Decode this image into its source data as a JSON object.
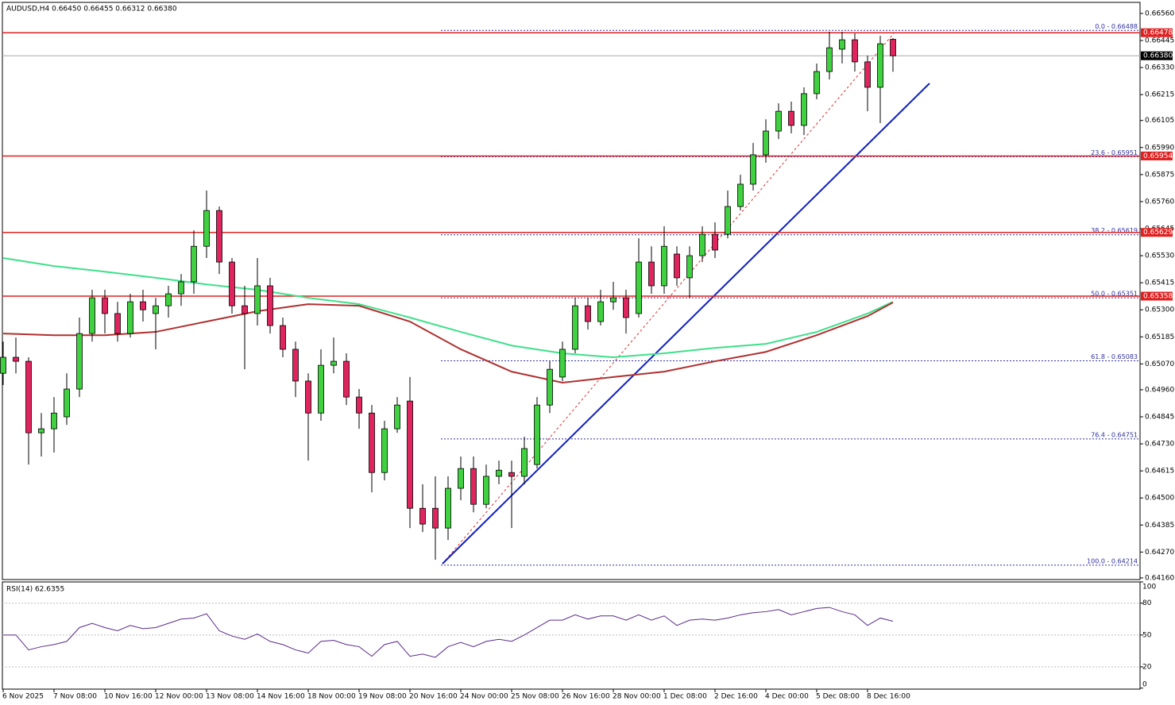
{
  "chart_data": {
    "type": "candlestick",
    "title": "AUDUSD,H4 0.66450 0.66455 0.66312 0.66380",
    "xlim": [
      0,
      89.5
    ],
    "ylim": [
      0.64153,
      0.66607
    ],
    "xticks": [
      {
        "value": 0,
        "label": "6 Nov 2025"
      },
      {
        "value": 4,
        "label": "7 Nov 08:00"
      },
      {
        "value": 8,
        "label": "10 Nov 16:00"
      },
      {
        "value": 12,
        "label": "12 Nov 00:00"
      },
      {
        "value": 16,
        "label": "13 Nov 08:00"
      },
      {
        "value": 20,
        "label": "14 Nov 16:00"
      },
      {
        "value": 24,
        "label": "18 Nov 00:00"
      },
      {
        "value": 28,
        "label": "19 Nov 08:00"
      },
      {
        "value": 32,
        "label": "20 Nov 16:00"
      },
      {
        "value": 36,
        "label": "24 Nov 00:00"
      },
      {
        "value": 40,
        "label": "25 Nov 08:00"
      },
      {
        "value": 44,
        "label": "26 Nov 16:00"
      },
      {
        "value": 48,
        "label": "28 Nov 00:00"
      },
      {
        "value": 52,
        "label": "1 Dec 08:00"
      },
      {
        "value": 56,
        "label": "2 Dec 16:00"
      },
      {
        "value": 60,
        "label": "4 Dec 00:00"
      },
      {
        "value": 64,
        "label": "5 Dec 08:00"
      },
      {
        "value": 68,
        "label": "8 Dec 16:00"
      }
    ],
    "yticks": [
      {
        "value": 0.6656,
        "label": "0.66560"
      },
      0.66445,
      {
        "value": 0.6633,
        "label": "0.66330"
      },
      0.66215,
      0.66105,
      {
        "value": 0.6599,
        "label": "0.65990"
      },
      0.65875,
      {
        "value": 0.6576,
        "label": "0.65760"
      },
      0.65645,
      {
        "value": 0.6553,
        "label": "0.65530"
      },
      0.65415,
      {
        "value": 0.653,
        "label": "0.65300"
      },
      0.65185,
      {
        "value": 0.6507,
        "label": "0.65070"
      },
      {
        "value": 0.6496,
        "label": "0.64960"
      },
      0.64845,
      {
        "value": 0.6473,
        "label": "0.64730"
      },
      0.64615,
      {
        "value": 0.645,
        "label": "0.64500"
      },
      0.64385,
      {
        "value": 0.6427,
        "label": "0.64270"
      },
      {
        "value": 0.6416,
        "label": "0.64160"
      }
    ],
    "up_color": "#3fd13f",
    "down_color": "#e0245e",
    "candles": [
      {
        "o": 0.6503,
        "h": 0.65165,
        "l": 0.6498,
        "c": 0.65098
      },
      {
        "o": 0.65098,
        "h": 0.65182,
        "l": 0.6503,
        "c": 0.65081
      },
      {
        "o": 0.65081,
        "h": 0.65098,
        "l": 0.64642,
        "c": 0.64777
      },
      {
        "o": 0.64777,
        "h": 0.64861,
        "l": 0.64676,
        "c": 0.64794
      },
      {
        "o": 0.64794,
        "h": 0.64929,
        "l": 0.64693,
        "c": 0.64861
      },
      {
        "o": 0.64845,
        "h": 0.6503,
        "l": 0.64811,
        "c": 0.64963
      },
      {
        "o": 0.64963,
        "h": 0.65267,
        "l": 0.64929,
        "c": 0.65199
      },
      {
        "o": 0.65199,
        "h": 0.65385,
        "l": 0.65165,
        "c": 0.65351
      },
      {
        "o": 0.65351,
        "h": 0.65385,
        "l": 0.65199,
        "c": 0.65284
      },
      {
        "o": 0.65284,
        "h": 0.65334,
        "l": 0.65165,
        "c": 0.65199
      },
      {
        "o": 0.65199,
        "h": 0.65368,
        "l": 0.65182,
        "c": 0.65334
      },
      {
        "o": 0.65334,
        "h": 0.65385,
        "l": 0.6525,
        "c": 0.653
      },
      {
        "o": 0.65284,
        "h": 0.65351,
        "l": 0.65132,
        "c": 0.65317
      },
      {
        "o": 0.65317,
        "h": 0.65402,
        "l": 0.65267,
        "c": 0.65368
      },
      {
        "o": 0.65368,
        "h": 0.65452,
        "l": 0.65317,
        "c": 0.65419
      },
      {
        "o": 0.65419,
        "h": 0.65638,
        "l": 0.65368,
        "c": 0.6557
      },
      {
        "o": 0.6557,
        "h": 0.65807,
        "l": 0.6552,
        "c": 0.65722
      },
      {
        "o": 0.65722,
        "h": 0.65739,
        "l": 0.65452,
        "c": 0.65503
      },
      {
        "o": 0.65503,
        "h": 0.6552,
        "l": 0.65284,
        "c": 0.65317
      },
      {
        "o": 0.65317,
        "h": 0.65402,
        "l": 0.65047,
        "c": 0.65284
      },
      {
        "o": 0.65284,
        "h": 0.6552,
        "l": 0.65233,
        "c": 0.65402
      },
      {
        "o": 0.65402,
        "h": 0.65436,
        "l": 0.65199,
        "c": 0.65233
      },
      {
        "o": 0.65233,
        "h": 0.65267,
        "l": 0.65098,
        "c": 0.65132
      },
      {
        "o": 0.65132,
        "h": 0.65165,
        "l": 0.64929,
        "c": 0.64997
      },
      {
        "o": 0.64997,
        "h": 0.6503,
        "l": 0.64659,
        "c": 0.64861
      },
      {
        "o": 0.64861,
        "h": 0.65132,
        "l": 0.64828,
        "c": 0.65064
      },
      {
        "o": 0.65064,
        "h": 0.65182,
        "l": 0.6503,
        "c": 0.65081
      },
      {
        "o": 0.65081,
        "h": 0.65115,
        "l": 0.64895,
        "c": 0.64929
      },
      {
        "o": 0.64929,
        "h": 0.64963,
        "l": 0.64794,
        "c": 0.64861
      },
      {
        "o": 0.64861,
        "h": 0.64895,
        "l": 0.64524,
        "c": 0.64608
      },
      {
        "o": 0.64608,
        "h": 0.64828,
        "l": 0.64575,
        "c": 0.64794
      },
      {
        "o": 0.64794,
        "h": 0.64929,
        "l": 0.64777,
        "c": 0.64895
      },
      {
        "o": 0.64912,
        "h": 0.65014,
        "l": 0.64372,
        "c": 0.64456
      },
      {
        "o": 0.64456,
        "h": 0.64558,
        "l": 0.64355,
        "c": 0.64389
      },
      {
        "o": 0.64456,
        "h": 0.64592,
        "l": 0.64237,
        "c": 0.64372
      },
      {
        "o": 0.64372,
        "h": 0.64592,
        "l": 0.64321,
        "c": 0.64541
      },
      {
        "o": 0.64541,
        "h": 0.64676,
        "l": 0.6449,
        "c": 0.64625
      },
      {
        "o": 0.64625,
        "h": 0.64676,
        "l": 0.64439,
        "c": 0.64473
      },
      {
        "o": 0.64473,
        "h": 0.64642,
        "l": 0.64456,
        "c": 0.64592
      },
      {
        "o": 0.64592,
        "h": 0.64659,
        "l": 0.64558,
        "c": 0.64618
      },
      {
        "o": 0.64608,
        "h": 0.64659,
        "l": 0.64372,
        "c": 0.64592
      },
      {
        "o": 0.64592,
        "h": 0.6476,
        "l": 0.64558,
        "c": 0.6471
      },
      {
        "o": 0.64642,
        "h": 0.64929,
        "l": 0.64625,
        "c": 0.64895
      },
      {
        "o": 0.64895,
        "h": 0.65081,
        "l": 0.64861,
        "c": 0.65047
      },
      {
        "o": 0.65014,
        "h": 0.65165,
        "l": 0.64997,
        "c": 0.65132
      },
      {
        "o": 0.65132,
        "h": 0.65351,
        "l": 0.65115,
        "c": 0.65317
      },
      {
        "o": 0.65317,
        "h": 0.65351,
        "l": 0.65216,
        "c": 0.6525
      },
      {
        "o": 0.6525,
        "h": 0.65385,
        "l": 0.65233,
        "c": 0.65334
      },
      {
        "o": 0.65334,
        "h": 0.65419,
        "l": 0.653,
        "c": 0.65351
      },
      {
        "o": 0.65351,
        "h": 0.65385,
        "l": 0.65199,
        "c": 0.65267
      },
      {
        "o": 0.65284,
        "h": 0.65604,
        "l": 0.65267,
        "c": 0.65503
      },
      {
        "o": 0.65503,
        "h": 0.6557,
        "l": 0.65368,
        "c": 0.65402
      },
      {
        "o": 0.65402,
        "h": 0.65655,
        "l": 0.65368,
        "c": 0.6557
      },
      {
        "o": 0.65537,
        "h": 0.6557,
        "l": 0.65402,
        "c": 0.65436
      },
      {
        "o": 0.65436,
        "h": 0.6557,
        "l": 0.65351,
        "c": 0.6553
      },
      {
        "o": 0.6553,
        "h": 0.65655,
        "l": 0.65503,
        "c": 0.65621
      },
      {
        "o": 0.65621,
        "h": 0.65672,
        "l": 0.6552,
        "c": 0.65554
      },
      {
        "o": 0.65621,
        "h": 0.65807,
        "l": 0.65604,
        "c": 0.65739
      },
      {
        "o": 0.65739,
        "h": 0.65874,
        "l": 0.65722,
        "c": 0.65834
      },
      {
        "o": 0.65834,
        "h": 0.66009,
        "l": 0.65807,
        "c": 0.65959
      },
      {
        "o": 0.65959,
        "h": 0.6611,
        "l": 0.65925,
        "c": 0.6606
      },
      {
        "o": 0.6606,
        "h": 0.66178,
        "l": 0.66026,
        "c": 0.66144
      },
      {
        "o": 0.66144,
        "h": 0.66185,
        "l": 0.6605,
        "c": 0.66084
      },
      {
        "o": 0.66084,
        "h": 0.66246,
        "l": 0.66043,
        "c": 0.66219
      },
      {
        "o": 0.66219,
        "h": 0.66347,
        "l": 0.66195,
        "c": 0.66313
      },
      {
        "o": 0.66313,
        "h": 0.66482,
        "l": 0.66279,
        "c": 0.66414
      },
      {
        "o": 0.66408,
        "h": 0.66482,
        "l": 0.66347,
        "c": 0.66448
      },
      {
        "o": 0.66448,
        "h": 0.66475,
        "l": 0.66313,
        "c": 0.66354
      },
      {
        "o": 0.66354,
        "h": 0.66381,
        "l": 0.66144,
        "c": 0.66246
      },
      {
        "o": 0.66246,
        "h": 0.66465,
        "l": 0.66094,
        "c": 0.66431
      },
      {
        "o": 0.6645,
        "h": 0.66455,
        "l": 0.66312,
        "c": 0.6638
      }
    ],
    "moving_averages": [
      {
        "color": "#3ee08a",
        "x": [
          0,
          4,
          8,
          12,
          16,
          20,
          24,
          28,
          32,
          36,
          40,
          44,
          48,
          52,
          56,
          60,
          64,
          68,
          70
        ],
        "values": [
          0.6552,
          0.65486,
          0.65462,
          0.65436,
          0.65408,
          0.65385,
          0.65351,
          0.65324,
          0.65267,
          0.65206,
          0.65148,
          0.65115,
          0.65098,
          0.65115,
          0.65138,
          0.65155,
          0.65206,
          0.65284,
          0.65334
        ]
      },
      {
        "color": "#b03030",
        "x": [
          0,
          4,
          8,
          12,
          16,
          20,
          24,
          28,
          32,
          36,
          40,
          44,
          48,
          52,
          56,
          60,
          64,
          68,
          70
        ],
        "values": [
          0.65199,
          0.65192,
          0.65192,
          0.65206,
          0.6525,
          0.65294,
          0.65324,
          0.65317,
          0.6525,
          0.65132,
          0.65037,
          0.6499,
          0.65014,
          0.65037,
          0.65081,
          0.65121,
          0.65192,
          0.65273,
          0.65331
        ]
      }
    ],
    "levels": [
      0.66478,
      0.65954,
      0.65629,
      0.65358
    ],
    "current_price": {
      "value": 0.6638,
      "label": "0.66380"
    },
    "fib_levels": [
      {
        "value": 0.66488,
        "label": "0.0 - 0.66488"
      },
      {
        "value": 0.65951,
        "label": "23.6 - 0.65951"
      },
      {
        "value": 0.65619,
        "label": "38.2 - 0.65619"
      },
      {
        "value": 0.65351,
        "label": "50.0 - 0.65351"
      },
      {
        "value": 0.65083,
        "label": "61.8 - 0.65083"
      },
      {
        "value": 0.64751,
        "label": "76.4 - 0.64751"
      },
      {
        "value": 0.64214,
        "label": "100.0 - 0.64214"
      }
    ],
    "rsi": {
      "title": "RSI(14) 62.6355",
      "color": "#5a2a8a",
      "ylim": [
        0,
        100
      ],
      "yticks": [
        100,
        80,
        50,
        20,
        0
      ],
      "levels": [
        80,
        50,
        20
      ],
      "values": [
        50,
        50,
        36,
        39,
        41,
        44,
        57,
        61,
        57,
        54,
        59,
        56,
        57,
        61,
        65,
        66,
        70,
        54,
        49,
        46,
        51,
        44,
        41,
        36,
        33,
        44,
        45,
        41,
        39,
        30,
        41,
        44,
        30,
        32,
        29,
        39,
        43,
        39,
        44,
        46,
        44,
        50,
        57,
        64,
        64,
        69,
        65,
        68,
        68,
        64,
        69,
        64,
        68,
        59,
        64,
        65,
        64,
        66,
        69,
        71,
        72,
        74,
        69,
        72,
        75,
        76,
        72,
        69,
        59,
        66,
        63
      ]
    }
  }
}
